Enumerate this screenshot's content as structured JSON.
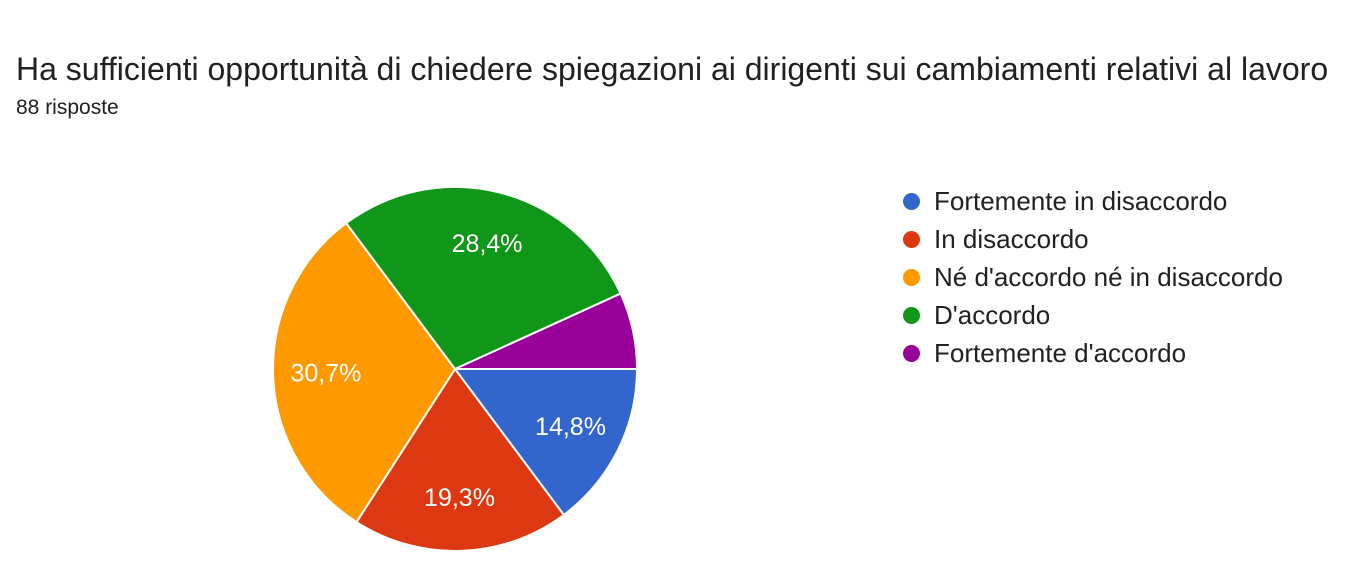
{
  "header": {
    "title": "Ha sufficienti opportunità di chiedere spiegazioni ai dirigenti sui cambiamenti relativi al lavoro",
    "responses_count": "88 risposte"
  },
  "chart_data": {
    "type": "pie",
    "title": "Ha sufficienti opportunità di chiedere spiegazioni ai dirigenti sui cambiamenti relativi al lavoro",
    "subtitle": "88 risposte",
    "total_responses": 88,
    "legend_position": "right",
    "start_angle_deg": 0,
    "direction": "clockwise",
    "label_color": "#ffffff",
    "slices": [
      {
        "label": "Fortemente in disaccordo",
        "value_pct": 14.8,
        "data_label": "14,8%",
        "label_visible": true,
        "color": "#3366cc"
      },
      {
        "label": "In disaccordo",
        "value_pct": 19.3,
        "data_label": "19,3%",
        "label_visible": true,
        "color": "#dc3912"
      },
      {
        "label": "Né d'accordo né in disaccordo",
        "value_pct": 30.7,
        "data_label": "30,7%",
        "label_visible": true,
        "color": "#ff9900"
      },
      {
        "label": "D'accordo",
        "value_pct": 28.4,
        "data_label": "28,4%",
        "label_visible": true,
        "color": "#109618"
      },
      {
        "label": "Fortemente d'accordo",
        "value_pct": 6.8,
        "data_label": "",
        "label_visible": false,
        "color": "#990099"
      }
    ]
  }
}
